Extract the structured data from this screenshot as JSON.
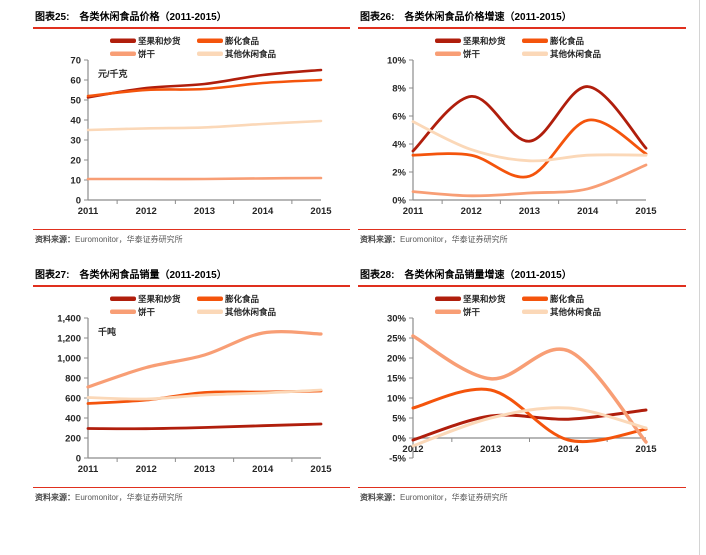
{
  "accent": {
    "rule_red": "#E0301E",
    "axis_gray": "#8C8C8C",
    "label_dark": "#262626",
    "source_gray": "#595959"
  },
  "figures": [
    {
      "label": "图表25:",
      "title": "各类休闲食品价格（2011-2015）",
      "source_label": "资料来源：",
      "source_text": "Euromonitor，华泰证券研究所"
    },
    {
      "label": "图表26:",
      "title": "各类休闲食品价格增速（2011-2015）",
      "source_label": "资料来源：",
      "source_text": "Euromonitor，华泰证券研究所"
    },
    {
      "label": "图表27:",
      "title": "各类休闲食品销量（2011-2015）",
      "source_label": "资料来源：",
      "source_text": "Euromonitor，华泰证券研究所"
    },
    {
      "label": "图表28:",
      "title": "各类休闲食品销量增速（2011-2015）",
      "source_label": "资料来源：",
      "source_text": "Euromonitor，华泰证券研究所"
    }
  ],
  "chart_data": [
    {
      "type": "line",
      "title": "各类休闲食品价格（2011-2015）",
      "unit_label": "元/千克",
      "categories": [
        "2011",
        "2012",
        "2013",
        "2014",
        "2015"
      ],
      "ylim": [
        0,
        70
      ],
      "ystep": 10,
      "yformat": "plain",
      "grid": false,
      "legend_position": "top",
      "series": [
        {
          "name": "坚果和炒货",
          "color": "#B01E0C",
          "width": 2.6,
          "values": [
            51.3,
            56,
            58,
            62.5,
            65
          ]
        },
        {
          "name": "膨化食品",
          "color": "#F4540C",
          "width": 2.6,
          "values": [
            52,
            55,
            55.5,
            58.5,
            60
          ]
        },
        {
          "name": "饼干",
          "color": "#F89E75",
          "width": 2.6,
          "values": [
            10.5,
            10.5,
            10.5,
            10.8,
            11
          ]
        },
        {
          "name": "其他休闲食品",
          "color": "#FBD8B8",
          "width": 2.6,
          "values": [
            35,
            35.8,
            36.3,
            38,
            39.5
          ]
        }
      ]
    },
    {
      "type": "line",
      "title": "各类休闲食品价格增速（2011-2015）",
      "unit_label": "",
      "categories": [
        "2011",
        "2012",
        "2013",
        "2014",
        "2015"
      ],
      "ylim": [
        0,
        10
      ],
      "ystep": 2,
      "yformat": "percent",
      "grid": false,
      "legend_position": "top",
      "series": [
        {
          "name": "坚果和炒货",
          "color": "#B01E0C",
          "width": 2.8,
          "values": [
            3.5,
            7.4,
            4.2,
            8.1,
            3.7
          ]
        },
        {
          "name": "膨化食品",
          "color": "#F4540C",
          "width": 2.8,
          "values": [
            3.2,
            3.2,
            1.7,
            5.7,
            3.3
          ]
        },
        {
          "name": "饼干",
          "color": "#F89E75",
          "width": 2.8,
          "values": [
            0.6,
            0.3,
            0.5,
            0.8,
            2.5
          ]
        },
        {
          "name": "其他休闲食品",
          "color": "#FBD8B8",
          "width": 2.8,
          "values": [
            5.6,
            3.6,
            2.8,
            3.2,
            3.2
          ]
        }
      ]
    },
    {
      "type": "line",
      "title": "各类休闲食品销量（2011-2015）",
      "unit_label": "千吨",
      "categories": [
        "2011",
        "2012",
        "2013",
        "2014",
        "2015"
      ],
      "ylim": [
        0,
        1400
      ],
      "ystep": 200,
      "yformat": "plain",
      "grid": false,
      "legend_position": "top",
      "series": [
        {
          "name": "坚果和炒货",
          "color": "#B01E0C",
          "width": 2.8,
          "values": [
            295,
            293,
            305,
            323,
            340
          ]
        },
        {
          "name": "膨化食品",
          "color": "#F4540C",
          "width": 2.8,
          "values": [
            545,
            580,
            655,
            660,
            670
          ]
        },
        {
          "name": "饼干",
          "color": "#F89E75",
          "width": 3.2,
          "values": [
            710,
            905,
            1030,
            1250,
            1240
          ]
        },
        {
          "name": "其他休闲食品",
          "color": "#FBD8B8",
          "width": 2.8,
          "values": [
            605,
            590,
            630,
            650,
            680
          ]
        }
      ]
    },
    {
      "type": "line",
      "title": "各类休闲食品销量增速（2011-2015）",
      "unit_label": "",
      "categories": [
        "2012",
        "2013",
        "2014",
        "2015"
      ],
      "ylim": [
        -5,
        30
      ],
      "ystep": 5,
      "yformat": "percent",
      "grid": false,
      "legend_position": "top",
      "series": [
        {
          "name": "坚果和炒货",
          "color": "#B01E0C",
          "width": 3,
          "values": [
            -0.5,
            5.5,
            4.7,
            7
          ]
        },
        {
          "name": "膨化食品",
          "color": "#F4540C",
          "width": 3,
          "values": [
            7.5,
            12,
            -0.5,
            2.2
          ]
        },
        {
          "name": "饼干",
          "color": "#F89E75",
          "width": 3.5,
          "values": [
            25.5,
            14.8,
            21.8,
            -1
          ]
        },
        {
          "name": "其他休闲食品",
          "color": "#FBD8B8",
          "width": 3,
          "values": [
            -2,
            5,
            7.5,
            2.5
          ]
        }
      ]
    }
  ]
}
